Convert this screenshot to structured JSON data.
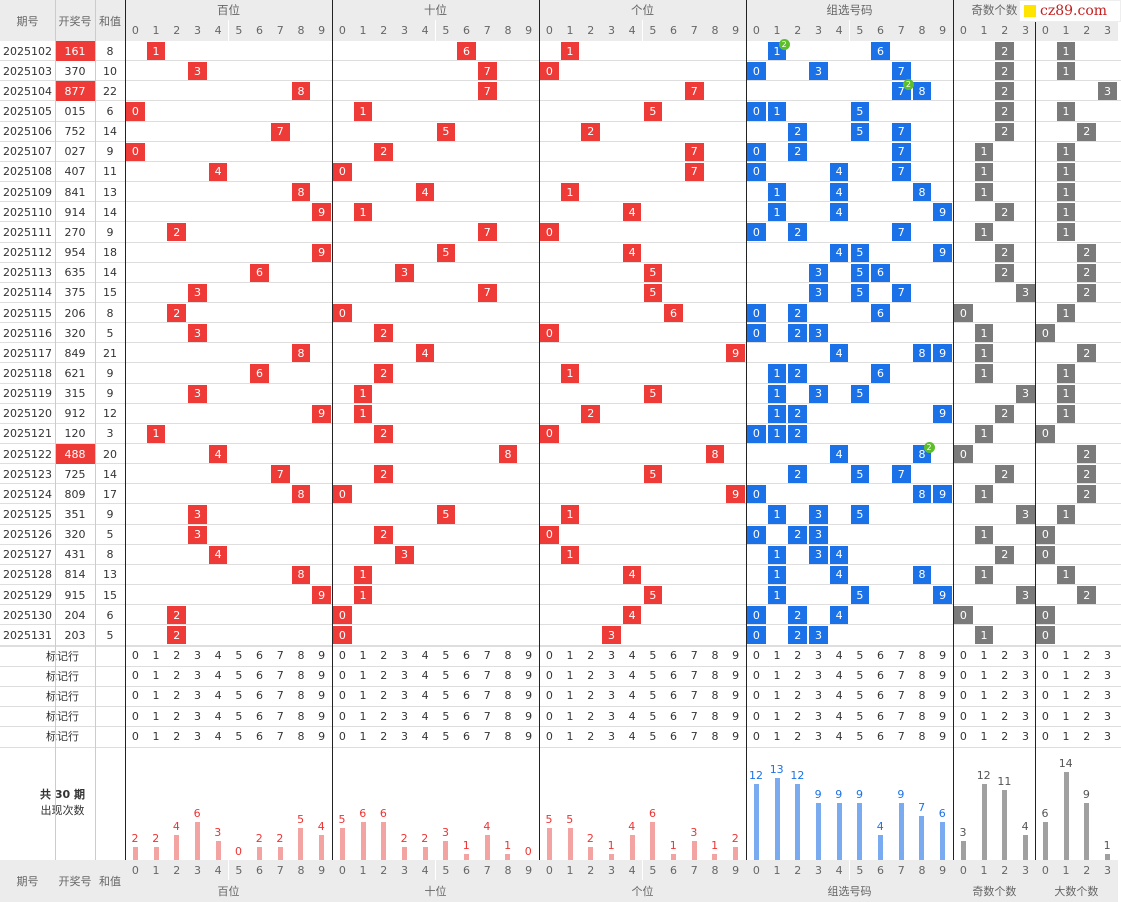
{
  "header": {
    "period": "期号",
    "draw": "开奖号",
    "sum": "和值",
    "groups": [
      "百位",
      "十位",
      "个位",
      "组选号码",
      "奇数个数",
      "大数个数"
    ]
  },
  "brand": {
    "text": "cz89.com"
  },
  "rows": [
    {
      "p": "2025102",
      "n": "161",
      "s": "8"
    },
    {
      "p": "2025103",
      "n": "370",
      "s": "10"
    },
    {
      "p": "2025104",
      "n": "877",
      "s": "22"
    },
    {
      "p": "2025105",
      "n": "015",
      "s": "6"
    },
    {
      "p": "2025106",
      "n": "752",
      "s": "14"
    },
    {
      "p": "2025107",
      "n": "027",
      "s": "9"
    },
    {
      "p": "2025108",
      "n": "407",
      "s": "11"
    },
    {
      "p": "2025109",
      "n": "841",
      "s": "13"
    },
    {
      "p": "2025110",
      "n": "914",
      "s": "14"
    },
    {
      "p": "2025111",
      "n": "270",
      "s": "9"
    },
    {
      "p": "2025112",
      "n": "954",
      "s": "18"
    },
    {
      "p": "2025113",
      "n": "635",
      "s": "14"
    },
    {
      "p": "2025114",
      "n": "375",
      "s": "15"
    },
    {
      "p": "2025115",
      "n": "206",
      "s": "8"
    },
    {
      "p": "2025116",
      "n": "320",
      "s": "5"
    },
    {
      "p": "2025117",
      "n": "849",
      "s": "21"
    },
    {
      "p": "2025118",
      "n": "621",
      "s": "9"
    },
    {
      "p": "2025119",
      "n": "315",
      "s": "9"
    },
    {
      "p": "2025120",
      "n": "912",
      "s": "12"
    },
    {
      "p": "2025121",
      "n": "120",
      "s": "3"
    },
    {
      "p": "2025122",
      "n": "488",
      "s": "20"
    },
    {
      "p": "2025123",
      "n": "725",
      "s": "14"
    },
    {
      "p": "2025124",
      "n": "809",
      "s": "17"
    },
    {
      "p": "2025125",
      "n": "351",
      "s": "9"
    },
    {
      "p": "2025126",
      "n": "320",
      "s": "5"
    },
    {
      "p": "2025127",
      "n": "431",
      "s": "8"
    },
    {
      "p": "2025128",
      "n": "814",
      "s": "13"
    },
    {
      "p": "2025129",
      "n": "915",
      "s": "15"
    },
    {
      "p": "2025130",
      "n": "204",
      "s": "6"
    },
    {
      "p": "2025131",
      "n": "203",
      "s": "5"
    }
  ],
  "marker_label": "标记行",
  "marker_rows": 5,
  "stats_label_1": "共 30 期",
  "stats_label_2": "出现次数",
  "chart_data": {
    "type": "bar",
    "title": "",
    "periods": 30,
    "series": [
      {
        "name": "百位",
        "categories": [
          "0",
          "1",
          "2",
          "3",
          "4",
          "5",
          "6",
          "7",
          "8",
          "9"
        ],
        "values": [
          2,
          2,
          4,
          6,
          3,
          0,
          2,
          2,
          5,
          4
        ]
      },
      {
        "name": "十位",
        "categories": [
          "0",
          "1",
          "2",
          "3",
          "4",
          "5",
          "6",
          "7",
          "8",
          "9"
        ],
        "values": [
          5,
          6,
          6,
          2,
          2,
          3,
          1,
          4,
          1,
          0
        ]
      },
      {
        "name": "个位",
        "categories": [
          "0",
          "1",
          "2",
          "3",
          "4",
          "5",
          "6",
          "7",
          "8",
          "9"
        ],
        "values": [
          5,
          5,
          2,
          1,
          4,
          6,
          1,
          3,
          1,
          2
        ]
      },
      {
        "name": "组选号码",
        "categories": [
          "0",
          "1",
          "2",
          "3",
          "4",
          "5",
          "6",
          "7",
          "8",
          "9"
        ],
        "values": [
          12,
          13,
          12,
          9,
          9,
          9,
          4,
          9,
          7,
          6
        ]
      },
      {
        "name": "奇数个数",
        "categories": [
          "0",
          "1",
          "2",
          "3"
        ],
        "values": [
          3,
          12,
          11,
          4
        ]
      },
      {
        "name": "大数个数",
        "categories": [
          "0",
          "1",
          "2",
          "3"
        ],
        "values": [
          6,
          14,
          9,
          1
        ]
      }
    ]
  },
  "colors": {
    "hundreds": "#ef3b38",
    "group": "#1b72e8",
    "count": "#7a7a7a",
    "bar_red": "#f4a3a3",
    "bar_blue": "#7aaaf0",
    "bar_gray": "#a0a0a0",
    "value_red": "#e33",
    "value_blue": "#1b72e8",
    "value_gray": "#555",
    "repeat_badge": "#5cbf2a"
  }
}
